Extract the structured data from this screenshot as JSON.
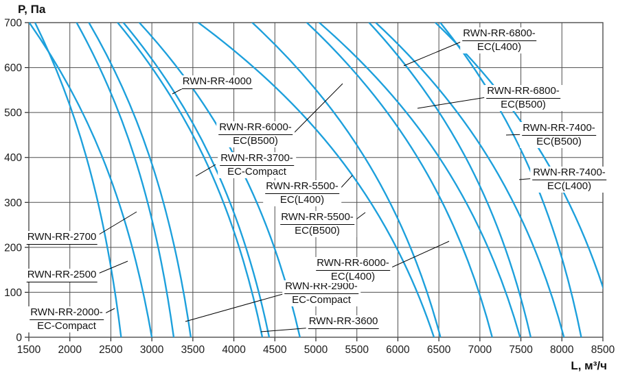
{
  "chart_data": {
    "type": "line",
    "title": "",
    "xlabel": "L, м³/ч",
    "ylabel": "P, Па",
    "xlim": [
      1500,
      8500
    ],
    "ylim": [
      0,
      700
    ],
    "x_ticks": [
      1500,
      2000,
      2500,
      3000,
      3500,
      4000,
      4500,
      5000,
      5500,
      6000,
      6500,
      7000,
      7500,
      8000,
      8500
    ],
    "y_ticks": [
      0,
      100,
      200,
      300,
      400,
      500,
      600,
      700
    ],
    "grid": true,
    "legend": "none",
    "curve_color": "#1da0dc",
    "grid_color": "#4d4d4d",
    "pointer_color": "#000000",
    "series": [
      {
        "name": "RWN-RR-2000-EC-Compact",
        "L_at_P700": 1575,
        "L_at_P0": 2625,
        "label": {
          "lines": [
            "RWN-RR-2000-",
            "EC-Compact"
          ],
          "cx": 97,
          "y": 447
        },
        "pointer": [
          151,
          458,
          167,
          450
        ]
      },
      {
        "name": "RWN-RR-2500",
        "L_at_P700": 1505,
        "L_at_P0": 3000,
        "label": {
          "lines": [
            "RWN-RR-2500"
          ],
          "cx": 90,
          "y": 392
        },
        "pointer": [
          136,
          402,
          186,
          381
        ]
      },
      {
        "name": "RWN-RR-2700",
        "L_at_P700": 2083,
        "L_at_P0": 3267,
        "label": {
          "lines": [
            "RWN-RR-2700"
          ],
          "cx": 90,
          "y": 337
        },
        "pointer": [
          136,
          347,
          199,
          309
        ]
      },
      {
        "name": "RWN-RR-2900-EC-Compact",
        "L_at_P700": 2233,
        "L_at_P0": 3475,
        "label": {
          "lines": [
            "RWN-RR-2900-",
            "EC-Compact"
          ],
          "cx": 468,
          "y": 409
        },
        "pointer": [
          419,
          427,
          270,
          469
        ]
      },
      {
        "name": "RWN-RR-3600",
        "L_at_P700": 2583,
        "L_at_P0": 4347,
        "label": {
          "lines": [
            "RWN-RR-3600"
          ],
          "cx": 500,
          "y": 460
        },
        "pointer": [
          455,
          478,
          380,
          484
        ]
      },
      {
        "name": "RWN-RR-3700-EC-Compact",
        "L_at_P700": 2653,
        "L_at_P0": 4431,
        "label": {
          "lines": [
            "RWN-RR-3700-",
            "EC-Compact"
          ],
          "cx": 374,
          "y": 222
        },
        "pointer": [
          314,
          240,
          285,
          257
        ]
      },
      {
        "name": "RWN-RR-4000",
        "L_at_P700": 2847,
        "L_at_P0": 4806,
        "label": {
          "lines": [
            "RWN-RR-4000"
          ],
          "cx": 316,
          "y": 110
        },
        "pointer": [
          268,
          128,
          251,
          137
        ]
      },
      {
        "name": "RWN-RR-5500-EC(L400)",
        "L_at_P700": 3567,
        "L_at_P0": 6440,
        "label": {
          "lines": [
            "RWN-RR-5500-",
            "EC(L400)"
          ],
          "cx": 440,
          "y": 263
        },
        "pointer": [
          490,
          281,
          513,
          256
        ]
      },
      {
        "name": "RWN-RR-5500-EC(B500)",
        "L_at_P700": 4225,
        "L_at_P0": 6520,
        "label": {
          "lines": [
            "RWN-RR-5500-",
            "EC(B500)"
          ],
          "cx": 462,
          "y": 308
        },
        "pointer": [
          512,
          325,
          532,
          310
        ]
      },
      {
        "name": "RWN-RR-6000-EC(B500)",
        "L_at_P700": 4890,
        "L_at_P0": 7150,
        "label": {
          "lines": [
            "RWN-RR-6000-",
            "EC(B500)"
          ],
          "cx": 372,
          "y": 177
        },
        "pointer": [
          428,
          194,
          499,
          122
        ]
      },
      {
        "name": "RWN-RR-6000-EC(L400)",
        "L_at_P700": 5042,
        "L_at_P0": 7490,
        "label": {
          "lines": [
            "RWN-RR-6000-",
            "EC(L400)"
          ],
          "cx": 514,
          "y": 375
        },
        "pointer": [
          566,
          392,
          654,
          352
        ]
      },
      {
        "name": "RWN-RR-6800-EC(L400)",
        "L_at_P700": 5650,
        "L_at_P0": 7620,
        "label": {
          "lines": [
            "RWN-RR-6800-",
            "EC(L400)"
          ],
          "cx": 727,
          "y": 40
        },
        "pointer": [
          681,
          57,
          588,
          96
        ]
      },
      {
        "name": "RWN-RR-6800-EC(B500)",
        "L_at_P700": 5730,
        "L_at_P0": 8025,
        "label": {
          "lines": [
            "RWN-RR-6800-",
            "EC(B500)"
          ],
          "cx": 762,
          "y": 124
        },
        "pointer": [
          714,
          141,
          608,
          158
        ]
      },
      {
        "name": "RWN-RR-7400-EC(B500)",
        "L_at_P700": 6517,
        "L_at_P0": 8236,
        "label": {
          "lines": [
            "RWN-RR-7400-",
            "EC(B500)"
          ],
          "cx": 814,
          "y": 178
        },
        "pointer": [
          766,
          196,
          737,
          197
        ]
      },
      {
        "name": "RWN-RR-7400-EC(L400)",
        "L_at_P700": 6458,
        "L_at_P0": 8680,
        "label": {
          "lines": [
            "RWN-RR-7400-",
            "EC(L400)"
          ],
          "cx": 829,
          "y": 243
        },
        "pointer": [
          781,
          260,
          756,
          262
        ]
      }
    ]
  }
}
